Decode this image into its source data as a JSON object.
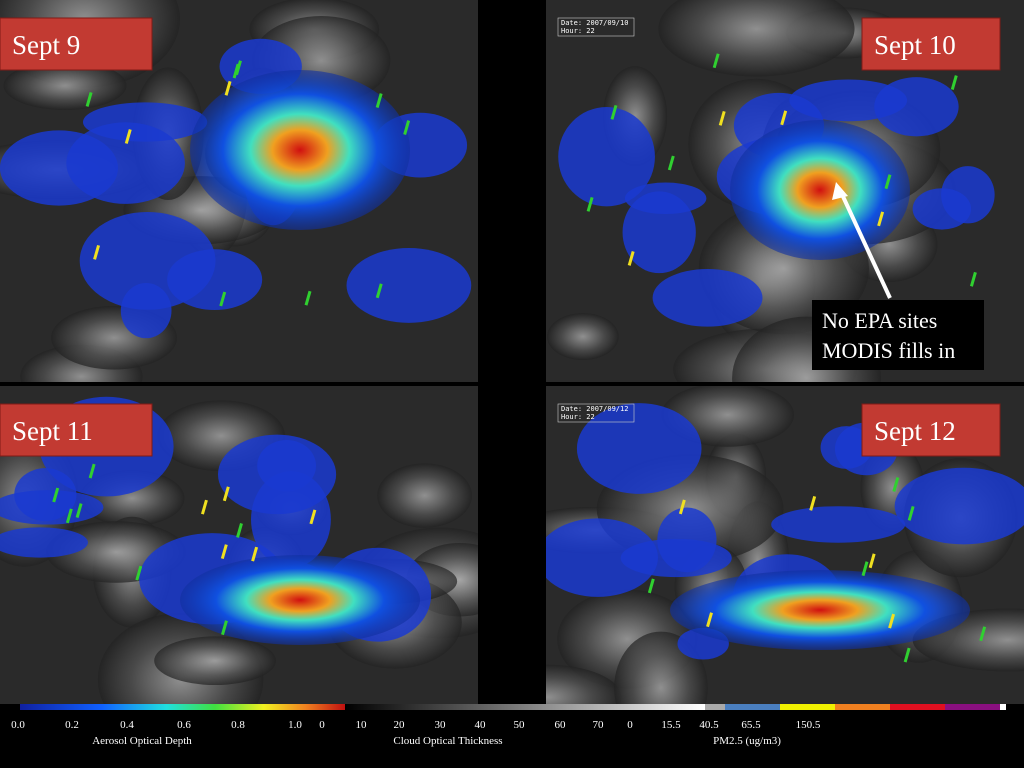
{
  "panels": [
    {
      "label": "Sept 9"
    },
    {
      "label": "Sept 10",
      "stamp": [
        "Date: 2007/09/10",
        "Hour: 22"
      ]
    },
    {
      "label": "Sept 11"
    },
    {
      "label": "Sept 12",
      "stamp": [
        "Date: 2007/09/12",
        "Hour: 22"
      ]
    }
  ],
  "annotation": [
    "No EPA sites",
    "MODIS fills in"
  ],
  "colorbars": [
    {
      "title": "Aerosol Optical Depth",
      "ticks": [
        "0.0",
        "0.2",
        "0.4",
        "0.6",
        "0.8",
        "1.0"
      ]
    },
    {
      "title": "Cloud Optical Thickness",
      "ticks": [
        "0",
        "10",
        "20",
        "30",
        "40",
        "50",
        "60",
        "70"
      ]
    },
    {
      "title": "PM2.5 (ug/m3)",
      "ticks": [
        "0",
        "15.5",
        "40.5",
        "65.5",
        "150.5"
      ]
    }
  ]
}
